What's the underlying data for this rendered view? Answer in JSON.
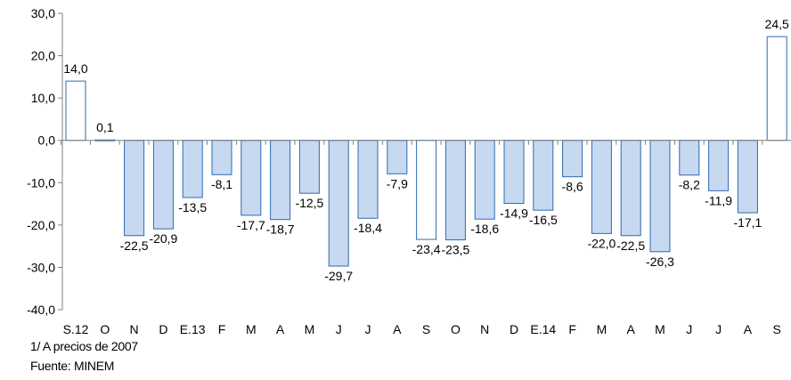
{
  "chart_data": {
    "type": "bar",
    "categories": [
      "S.12",
      "O",
      "N",
      "D",
      "E.13",
      "F",
      "M",
      "A",
      "M",
      "J",
      "J",
      "A",
      "S",
      "O",
      "N",
      "D",
      "E.14",
      "F",
      "M",
      "A",
      "M",
      "J",
      "J",
      "A",
      "S"
    ],
    "values": [
      14.0,
      0.1,
      -22.5,
      -20.9,
      -13.5,
      -8.1,
      -17.7,
      -18.7,
      -12.5,
      -29.7,
      -18.4,
      -7.9,
      -23.4,
      -23.5,
      -18.6,
      -14.9,
      -16.5,
      -8.6,
      -22.0,
      -22.5,
      -26.3,
      -8.2,
      -11.9,
      -17.1,
      24.5
    ],
    "labels": [
      "14,0",
      "0,1",
      "-22,5",
      "-20,9",
      "-13,5",
      "-8,1",
      "-17,7",
      "-18,7",
      "-12,5",
      "-29,7",
      "-18,4",
      "-7,9",
      "-23,4",
      "-23,5",
      "-18,6",
      "-14,9",
      "-16,5",
      "-8,6",
      "-22,0",
      "-22,5",
      "-26,3",
      "-8,2",
      "-11,9",
      "-17,1",
      "24,5"
    ],
    "highlight": [
      true,
      true,
      false,
      false,
      false,
      false,
      false,
      false,
      false,
      false,
      false,
      false,
      true,
      false,
      false,
      false,
      false,
      false,
      false,
      false,
      false,
      false,
      false,
      false,
      true
    ],
    "ylim": [
      -40,
      30
    ],
    "yticks": [
      30,
      20,
      10,
      0,
      -10,
      -20,
      -30,
      -40
    ],
    "ytick_labels": [
      "30,0",
      "20,0",
      "10,0",
      "0,0",
      "-10,0",
      "-20,0",
      "-30,0",
      "-40,0"
    ],
    "colors": {
      "fill": "#c6d9f1",
      "highlight_fill": "#ffffff",
      "stroke": "#2e6ab0",
      "axis": "#808080",
      "text": "#000000"
    },
    "grid": false,
    "legend": "none"
  },
  "footnotes": {
    "note": "1/ A precios de 2007",
    "source": "Fuente: MINEM"
  }
}
